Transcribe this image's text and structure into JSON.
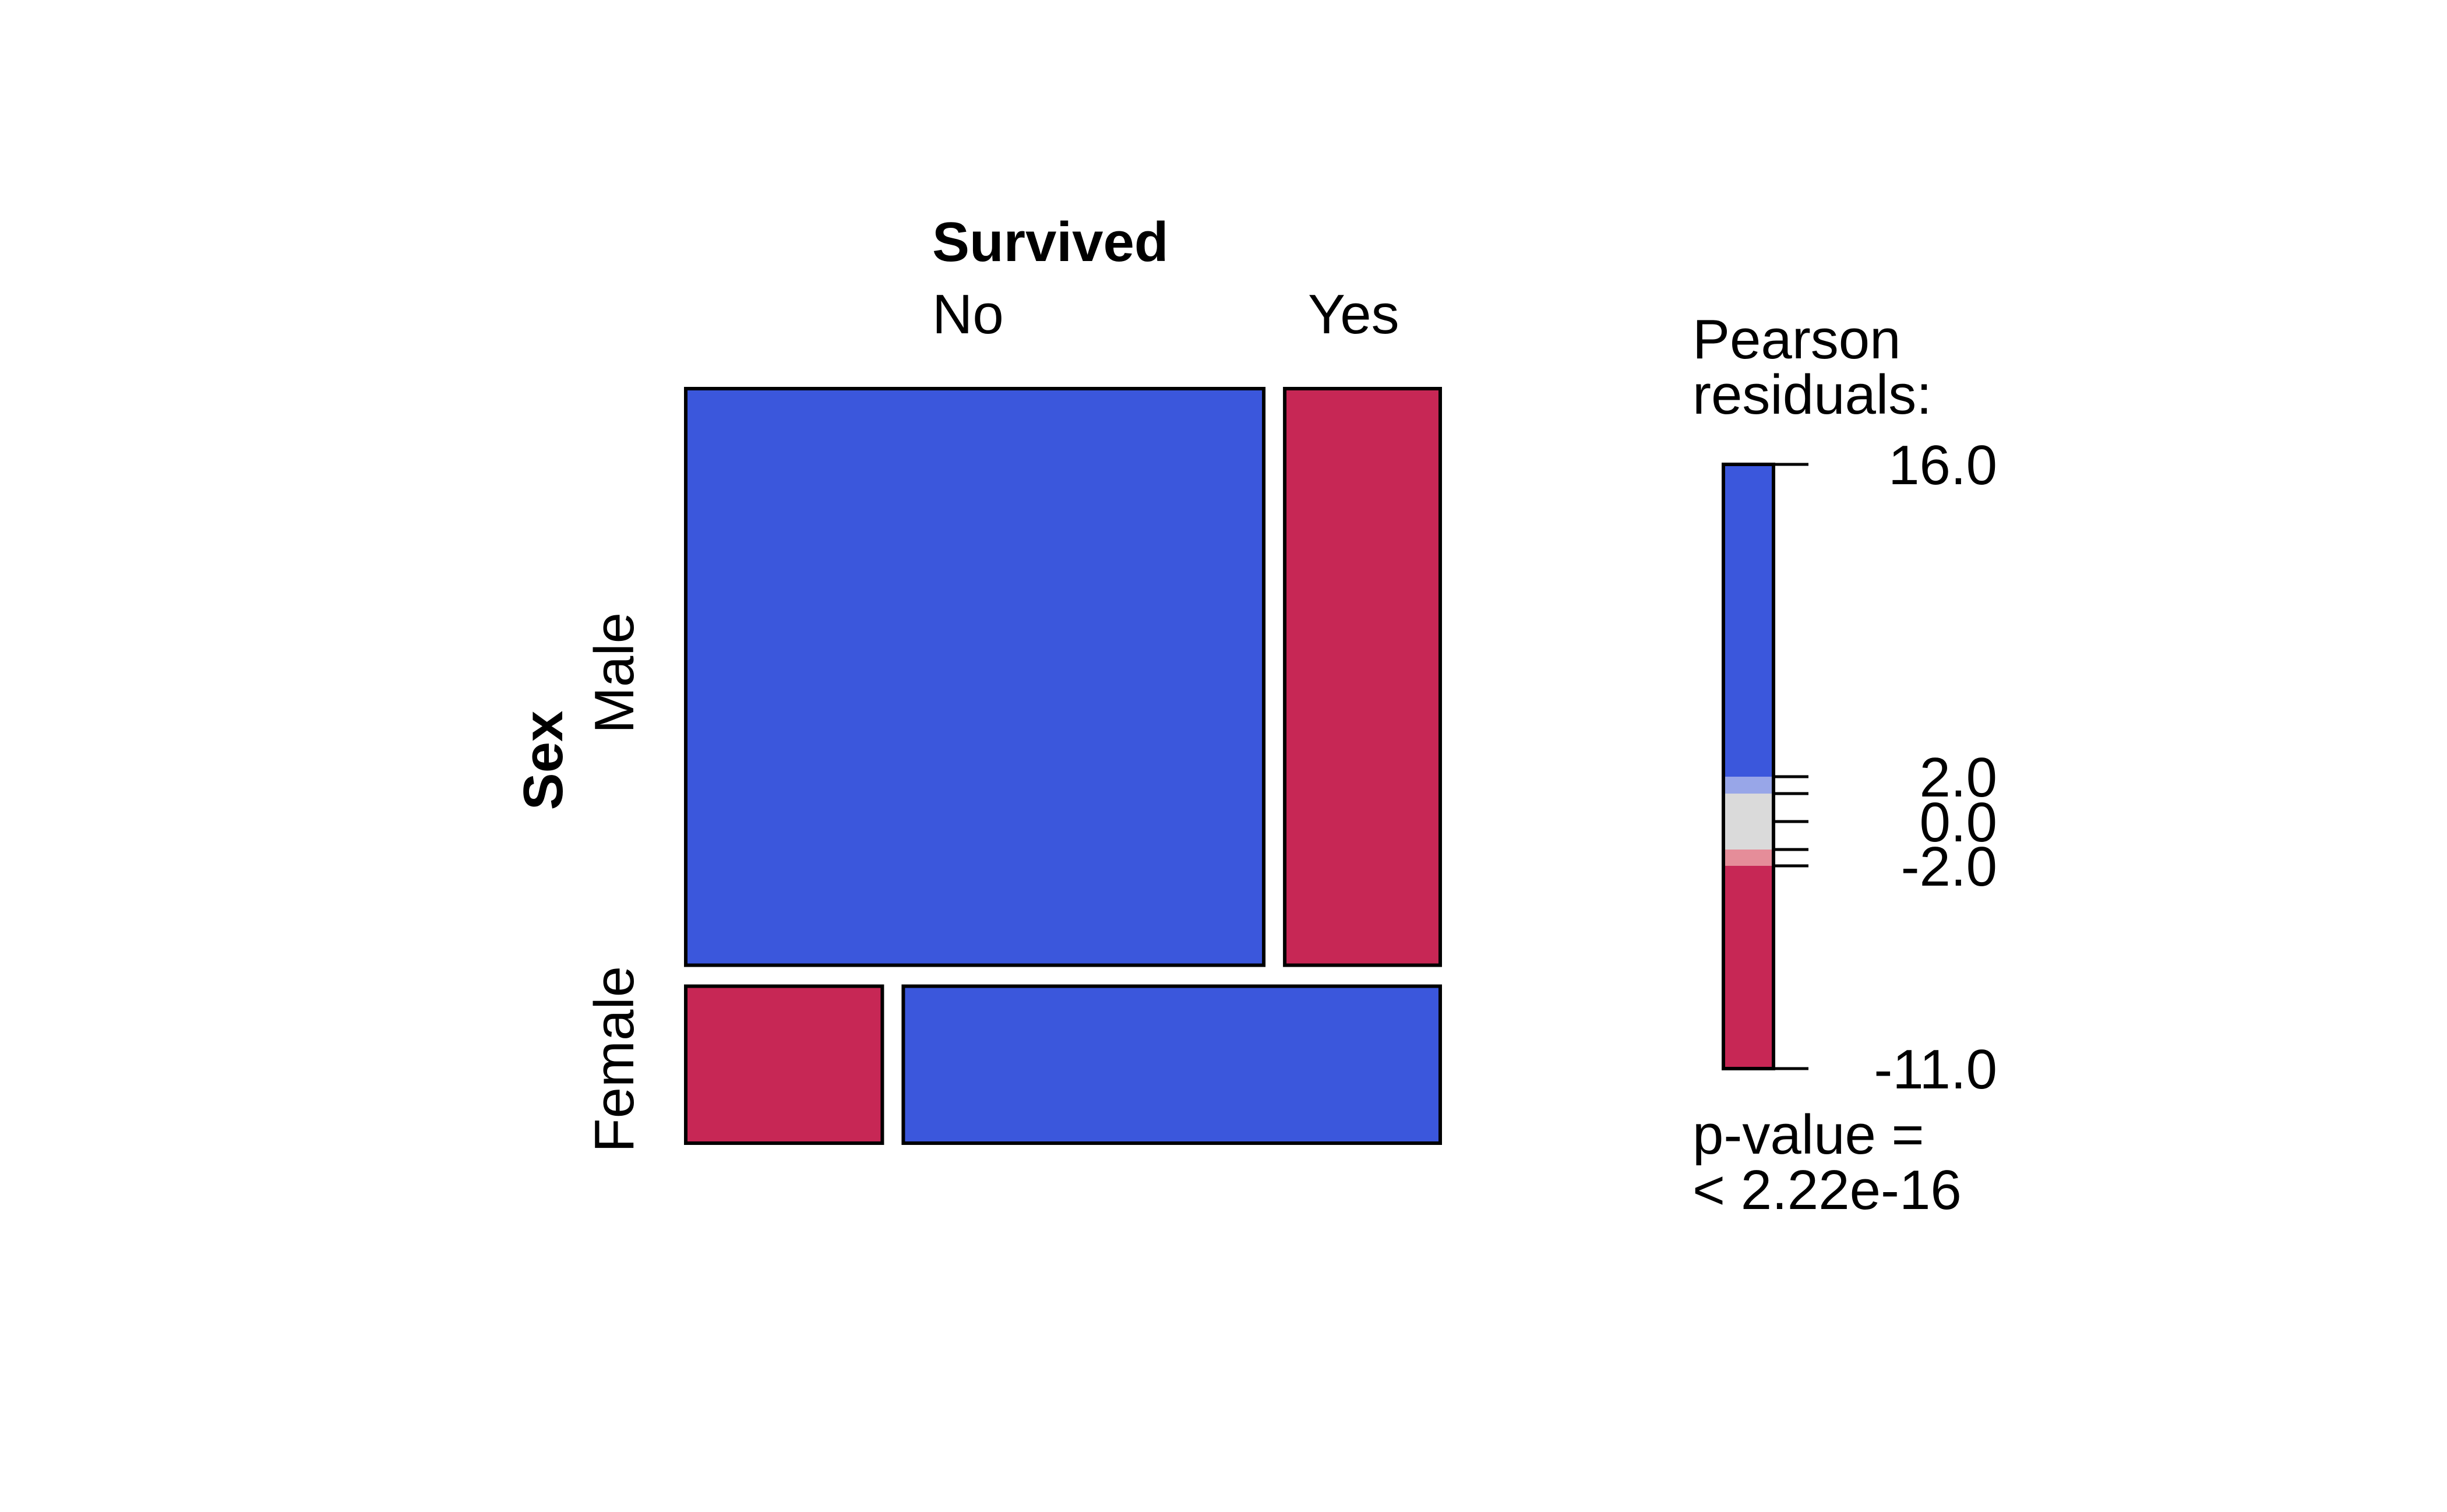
{
  "chart_data": {
    "type": "mosaic",
    "column_variable": "Survived",
    "row_variable": "Sex",
    "columns": [
      "No",
      "Yes"
    ],
    "rows": [
      "Male",
      "Female"
    ],
    "cells": [
      {
        "row": "Male",
        "col": "No",
        "proportion": 0.788,
        "residual_class": "positive-strong"
      },
      {
        "row": "Male",
        "col": "Yes",
        "proportion": 0.212,
        "residual_class": "negative-strong"
      },
      {
        "row": "Female",
        "col": "No",
        "proportion": 0.268,
        "residual_class": "negative-strong"
      },
      {
        "row": "Female",
        "col": "Yes",
        "proportion": 0.732,
        "residual_class": "positive-strong"
      }
    ],
    "row_proportions": [
      0.786,
      0.214
    ],
    "legend": {
      "title_line1": "Pearson",
      "title_line2": "residuals:",
      "ticks": [
        "16.0",
        "2.0",
        "0.0",
        "-2.0",
        "-11.0"
      ],
      "tick_values": [
        16.0,
        2.0,
        0.0,
        -2.0,
        -11.0
      ],
      "pvalue_line1": "p-value =",
      "pvalue_line2": "< 2.22e-16"
    },
    "colors": {
      "positive_strong": "#3b57dc",
      "positive_weak": "#98a6e8",
      "neutral": "#dadada",
      "negative_weak": "#e58d99",
      "negative_strong": "#c72755"
    }
  }
}
